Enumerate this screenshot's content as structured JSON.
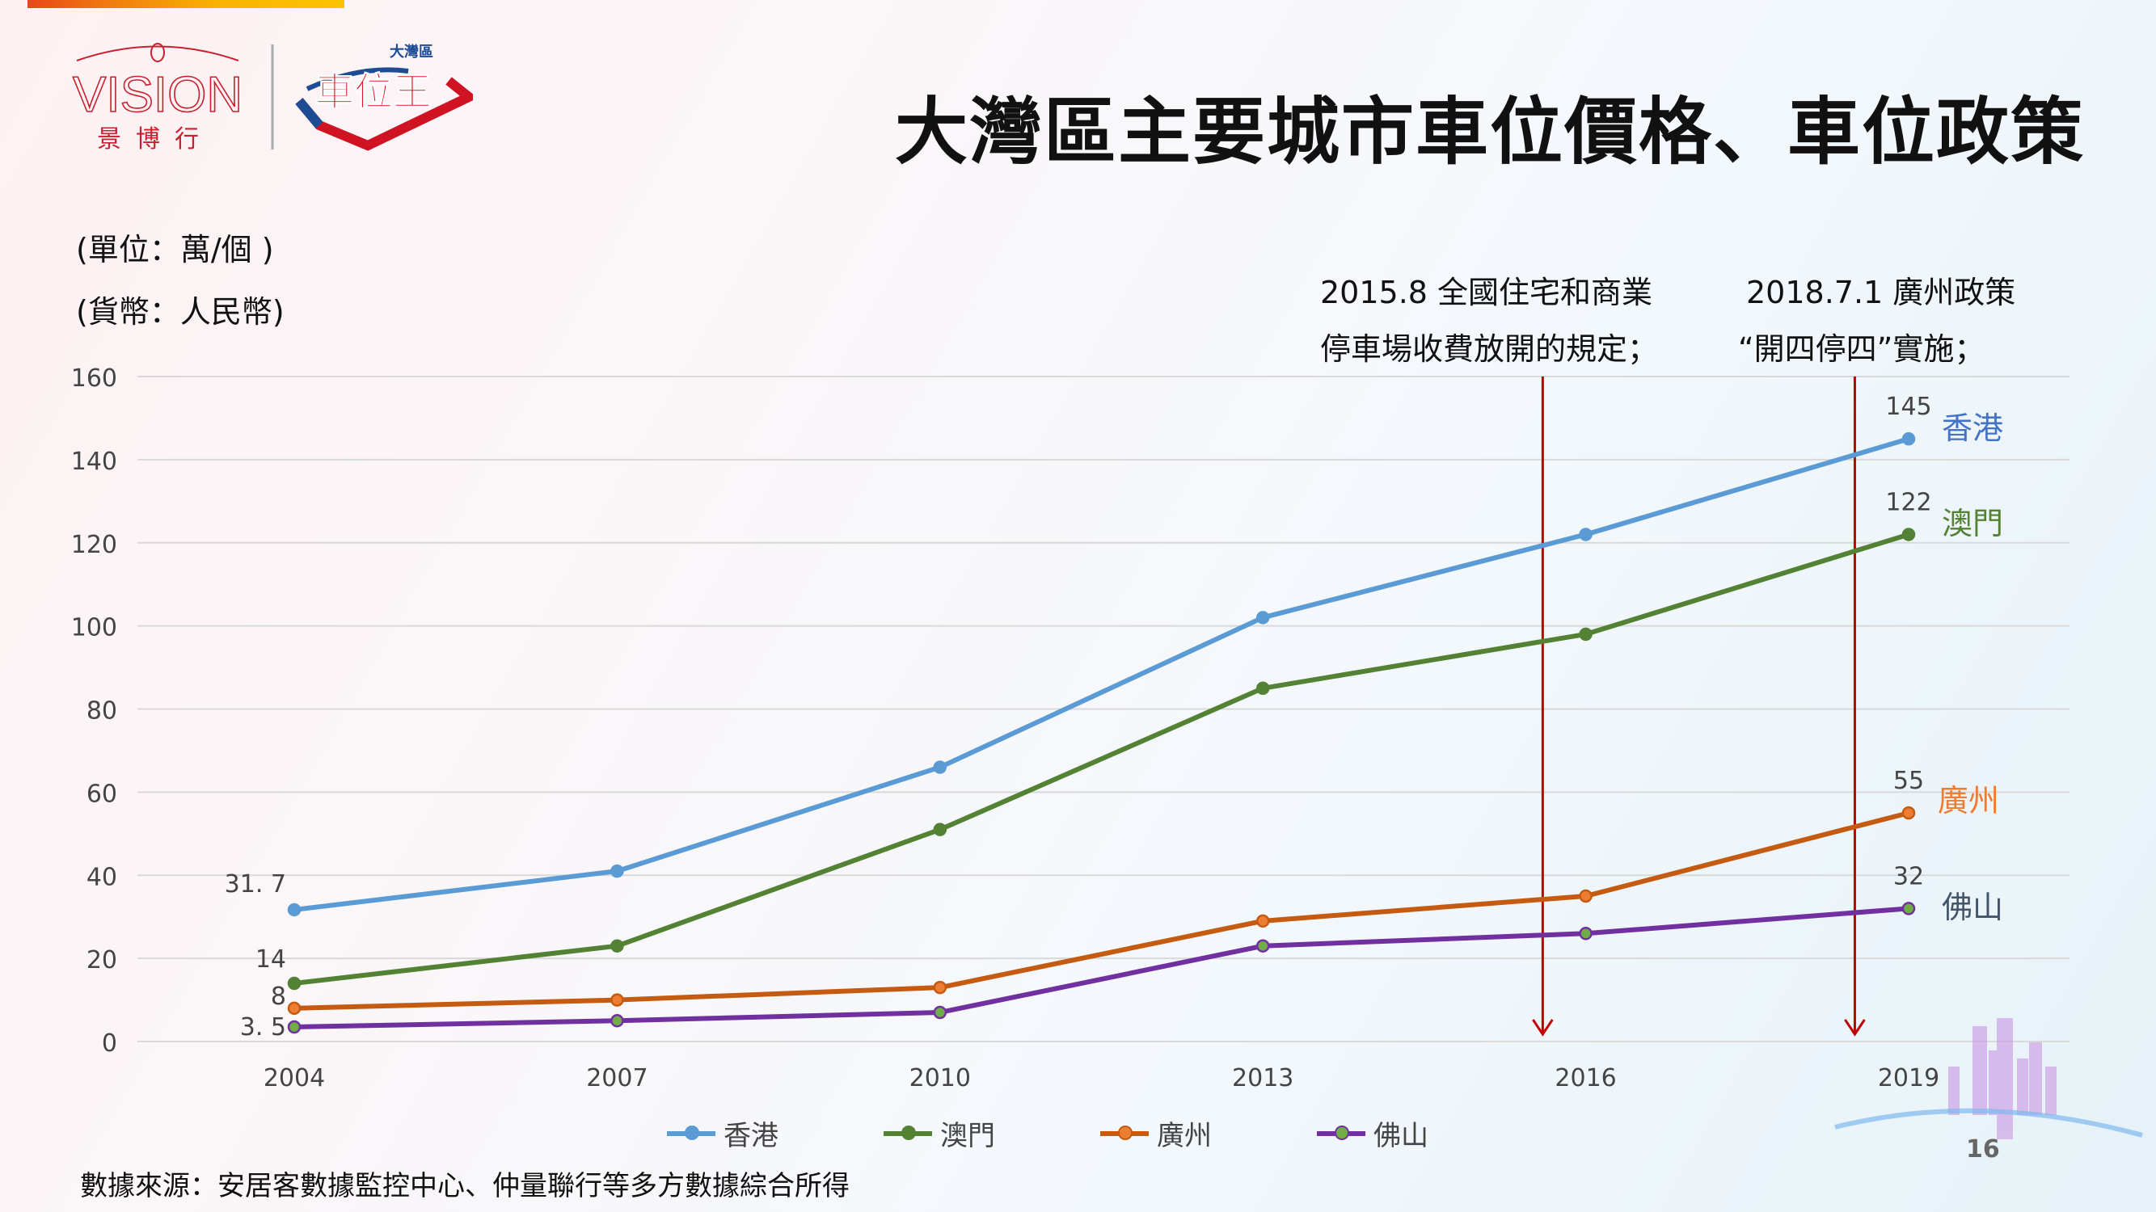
{
  "header": {
    "title": "大灣區主要城市車位價格、車位政策",
    "logo_vision": {
      "text": "VISION",
      "chinese": "景博行"
    },
    "logo_chewei": {
      "small": "大灣區",
      "main": "車位王"
    }
  },
  "units": {
    "unit": "(單位：萬/個 )",
    "currency": "(貨幣：人民幣)"
  },
  "annotations": [
    {
      "line1": "2015.8 全國住宅和商業",
      "line2": "停車場收費放開的規定；",
      "x": 2015.6
    },
    {
      "line1": "2018.7.1 廣州政策",
      "line2": "“開四停四”實施；",
      "x": 2018.5
    }
  ],
  "chart_data": {
    "type": "line",
    "x": [
      2004,
      2007,
      2010,
      2013,
      2016,
      2019
    ],
    "xticks": [
      "2004",
      "2007",
      "2010",
      "2013",
      "2016",
      "2019"
    ],
    "ylim": [
      0,
      160
    ],
    "yticks": [
      "0",
      "20",
      "40",
      "60",
      "80",
      "100",
      "120",
      "140",
      "160"
    ],
    "grid": true,
    "legend_position": "bottom",
    "series": [
      {
        "name": "香港",
        "values": [
          31.7,
          41,
          66,
          102,
          122,
          145
        ],
        "color": "#5b9bd5",
        "marker": "#5b9bd5",
        "label_color": "#4472c4",
        "first_label": "31. 7",
        "last_label": "145"
      },
      {
        "name": "澳門",
        "values": [
          14,
          23,
          51,
          85,
          98,
          122
        ],
        "color": "#548235",
        "marker": "#548235",
        "label_color": "#548235",
        "first_label": "14",
        "last_label": "122"
      },
      {
        "name": "廣州",
        "values": [
          8,
          10,
          13,
          29,
          35,
          55
        ],
        "color": "#c55a11",
        "marker": "#ed7d31",
        "label_color": "#ed7d31",
        "first_label": "8",
        "last_label": "55"
      },
      {
        "name": "佛山",
        "values": [
          3.5,
          5,
          7,
          23,
          26,
          32
        ],
        "color": "#7030a0",
        "marker": "#70ad47",
        "label_color": "#44546a",
        "first_label": "3. 5",
        "last_label": "32"
      }
    ]
  },
  "footer": {
    "source": "數據來源：安居客數據監控中心、仲量聯行等多方數據綜合所得",
    "page": "16"
  }
}
